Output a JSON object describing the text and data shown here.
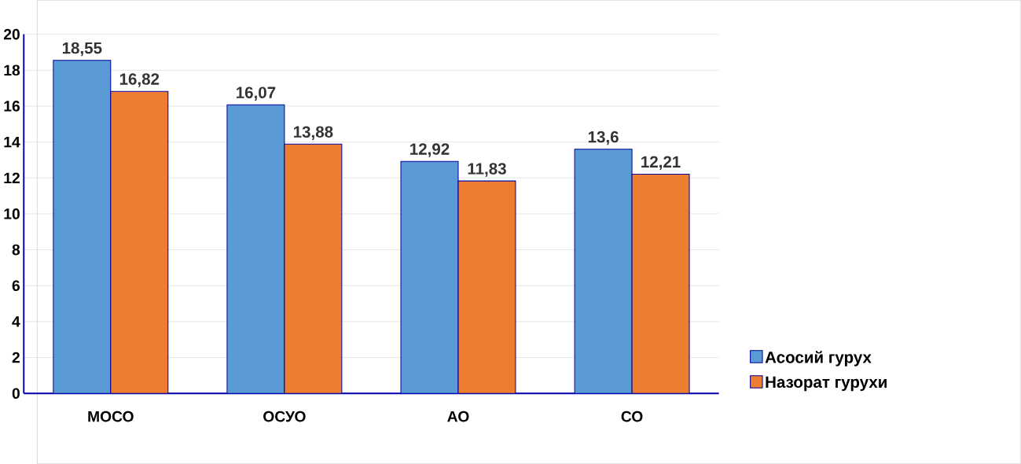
{
  "chart_data": {
    "type": "bar",
    "categories": [
      "МОСО",
      "ОСУО",
      "АО",
      "СО"
    ],
    "series": [
      {
        "name": "Асосий гурух",
        "color": "#5b9bd5",
        "values": [
          18.55,
          16.07,
          12.92,
          13.6
        ],
        "value_labels": [
          "18,55",
          "16,07",
          "12,92",
          "13,6"
        ]
      },
      {
        "name": "Назорат гурухи",
        "color": "#ed7d31",
        "values": [
          16.82,
          13.88,
          11.83,
          12.21
        ],
        "value_labels": [
          "16,82",
          "13,88",
          "11,83",
          "12,21"
        ]
      }
    ],
    "ylim": [
      0,
      20
    ],
    "yticks": [
      0,
      2,
      4,
      6,
      8,
      10,
      12,
      14,
      16,
      18,
      20
    ],
    "grid": "y",
    "legend": "bottom right"
  }
}
